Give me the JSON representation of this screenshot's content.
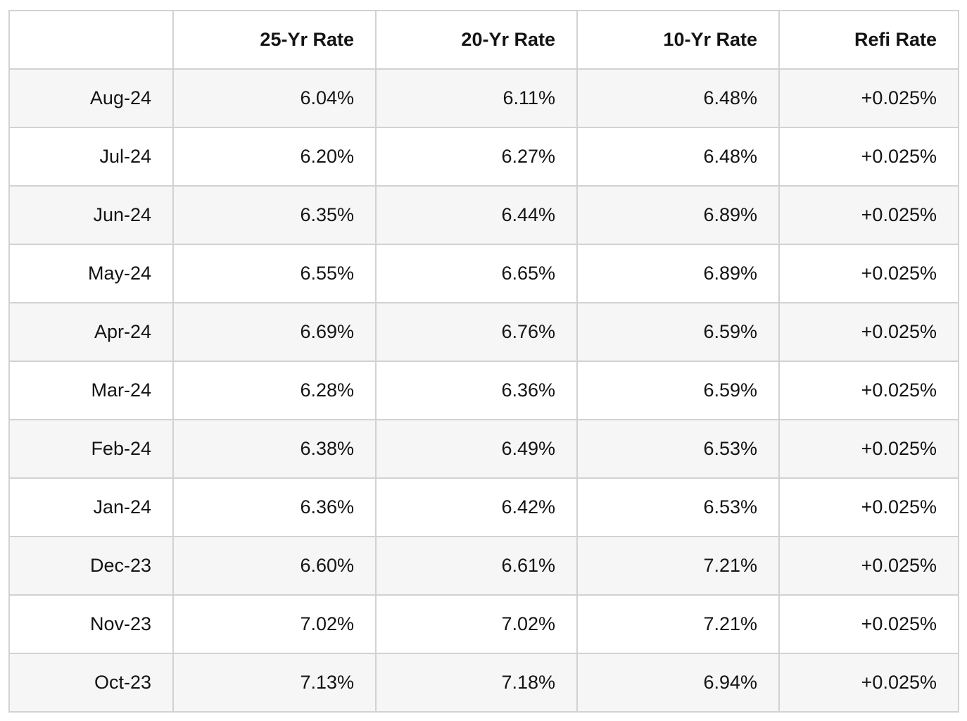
{
  "table": {
    "columns": [
      "",
      "25-Yr Rate",
      "20-Yr Rate",
      "10-Yr Rate",
      "Refi Rate"
    ],
    "rows": [
      {
        "label": "Aug-24",
        "values": [
          "6.04%",
          "6.11%",
          "6.48%",
          "+0.025%"
        ]
      },
      {
        "label": "Jul-24",
        "values": [
          "6.20%",
          "6.27%",
          "6.48%",
          "+0.025%"
        ]
      },
      {
        "label": "Jun-24",
        "values": [
          "6.35%",
          "6.44%",
          "6.89%",
          "+0.025%"
        ]
      },
      {
        "label": "May-24",
        "values": [
          "6.55%",
          "6.65%",
          "6.89%",
          "+0.025%"
        ]
      },
      {
        "label": "Apr-24",
        "values": [
          "6.69%",
          "6.76%",
          "6.59%",
          "+0.025%"
        ]
      },
      {
        "label": "Mar-24",
        "values": [
          "6.28%",
          "6.36%",
          "6.59%",
          "+0.025%"
        ]
      },
      {
        "label": "Feb-24",
        "values": [
          "6.38%",
          "6.49%",
          "6.53%",
          "+0.025%"
        ]
      },
      {
        "label": "Jan-24",
        "values": [
          "6.36%",
          "6.42%",
          "6.53%",
          "+0.025%"
        ]
      },
      {
        "label": "Dec-23",
        "values": [
          "6.60%",
          "6.61%",
          "7.21%",
          "+0.025%"
        ]
      },
      {
        "label": "Nov-23",
        "values": [
          "7.02%",
          "7.02%",
          "7.21%",
          "+0.025%"
        ]
      },
      {
        "label": "Oct-23",
        "values": [
          "7.13%",
          "7.18%",
          "6.94%",
          "+0.025%"
        ]
      }
    ],
    "colors": {
      "stripe": "#f6f6f6",
      "border": "#d2d2d2",
      "text": "#141414",
      "background": "#ffffff"
    }
  },
  "chart_data": {
    "type": "table",
    "title": "",
    "categories": [
      "Aug-24",
      "Jul-24",
      "Jun-24",
      "May-24",
      "Apr-24",
      "Mar-24",
      "Feb-24",
      "Jan-24",
      "Dec-23",
      "Nov-23",
      "Oct-23"
    ],
    "series": [
      {
        "name": "25-Yr Rate",
        "values": [
          6.04,
          6.2,
          6.35,
          6.55,
          6.69,
          6.28,
          6.38,
          6.36,
          6.6,
          7.02,
          7.13
        ]
      },
      {
        "name": "20-Yr Rate",
        "values": [
          6.11,
          6.27,
          6.44,
          6.65,
          6.76,
          6.36,
          6.49,
          6.42,
          6.61,
          7.02,
          7.18
        ]
      },
      {
        "name": "10-Yr Rate",
        "values": [
          6.48,
          6.48,
          6.89,
          6.89,
          6.59,
          6.59,
          6.53,
          6.53,
          7.21,
          7.21,
          6.94
        ]
      },
      {
        "name": "Refi Rate",
        "values": [
          "+0.025%",
          "+0.025%",
          "+0.025%",
          "+0.025%",
          "+0.025%",
          "+0.025%",
          "+0.025%",
          "+0.025%",
          "+0.025%",
          "+0.025%",
          "+0.025%"
        ]
      }
    ],
    "layout": {
      "grid": true,
      "striped_rows": true,
      "value_alignment": "right"
    }
  }
}
